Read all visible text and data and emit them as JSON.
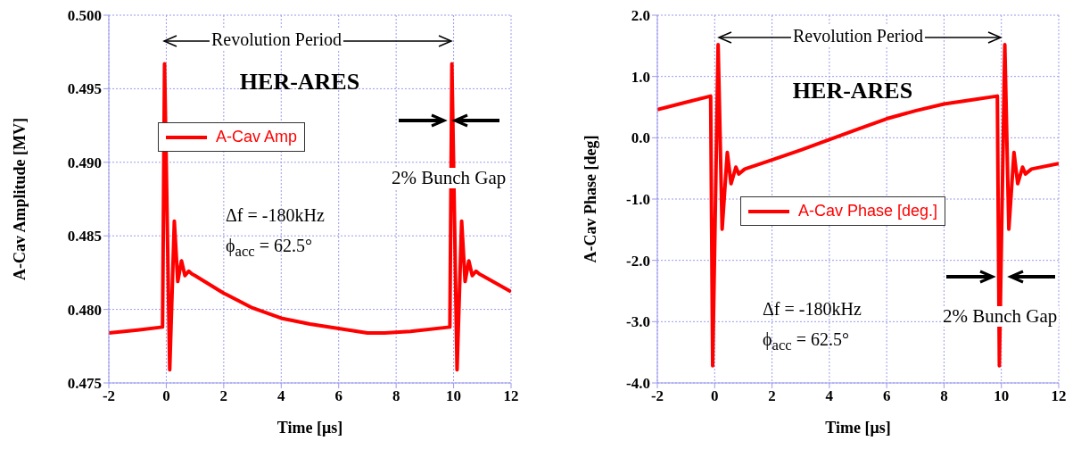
{
  "chart_data": [
    {
      "type": "line",
      "xlabel": "Time [μs]",
      "ylabel": "A-Cav Amplitude [MV]",
      "xlim": [
        -2,
        12
      ],
      "xticks": [
        -2,
        0,
        2,
        4,
        6,
        8,
        10,
        12
      ],
      "ylim": [
        0.475,
        0.5
      ],
      "yticks": [
        {
          "value": 0.475,
          "label": "0.475"
        },
        {
          "value": 0.48,
          "label": "0.480"
        },
        {
          "value": 0.485,
          "label": "0.485"
        },
        {
          "value": 0.49,
          "label": "0.490"
        },
        {
          "value": 0.495,
          "label": "0.495"
        },
        {
          "value": 0.5,
          "label": "0.500"
        }
      ],
      "grid": true,
      "legend": "top left",
      "line_style": "solid",
      "marker": "none",
      "x": [
        -2,
        -1,
        -0.13,
        -0.06,
        0.12,
        0.28,
        0.4,
        0.53,
        0.65,
        0.78,
        0.9,
        1,
        2,
        3,
        4,
        5,
        6,
        7,
        7.6,
        8.5,
        9.87,
        9.94,
        10.12,
        10.28,
        10.4,
        10.53,
        10.65,
        10.78,
        10.9,
        11,
        12
      ],
      "series": [
        {
          "name": "A-Cav Amp",
          "color": "#ff0000",
          "values": [
            0.4784,
            0.4786,
            0.4788,
            0.4967,
            0.4759,
            0.486,
            0.4819,
            0.4833,
            0.4823,
            0.4826,
            0.4824,
            0.4823,
            0.4811,
            0.4801,
            0.4794,
            0.479,
            0.4787,
            0.4784,
            0.4784,
            0.4785,
            0.4788,
            0.4967,
            0.4759,
            0.486,
            0.4819,
            0.4833,
            0.4823,
            0.4826,
            0.4824,
            0.4823,
            0.4812
          ]
        }
      ],
      "annotations": [
        "Revolution Period",
        "HER-ARES",
        "2% Bunch Gap",
        "Δf = -180kHz",
        "ϕ$_{acc}$ = 62.5°"
      ]
    },
    {
      "type": "line",
      "xlabel": "Time [μs]",
      "ylabel": "A-Cav Phase [deg]",
      "xlim": [
        -2,
        12
      ],
      "xticks": [
        -2,
        0,
        2,
        4,
        6,
        8,
        10,
        12
      ],
      "ylim": [
        -4,
        2
      ],
      "yticks": [
        {
          "value": -4,
          "label": "-4.0"
        },
        {
          "value": -3,
          "label": "-3.0"
        },
        {
          "value": -2,
          "label": "-2.0"
        },
        {
          "value": -1,
          "label": "-1.0"
        },
        {
          "value": 0,
          "label": "0.0"
        },
        {
          "value": 1,
          "label": "1.0"
        },
        {
          "value": 2,
          "label": "2.0"
        }
      ],
      "grid": true,
      "legend": "center left",
      "line_style": "solid",
      "marker": "none",
      "x": [
        -2,
        -0.14,
        -0.07,
        0.12,
        0.26,
        0.44,
        0.57,
        0.74,
        0.84,
        1.05,
        2,
        3,
        4,
        5,
        6,
        7,
        8,
        9,
        9.86,
        9.93,
        10.12,
        10.26,
        10.44,
        10.57,
        10.74,
        10.84,
        11.05,
        12
      ],
      "series": [
        {
          "name": "A-Cav Phase [deg.]",
          "color": "#ff0000",
          "values": [
            0.46,
            0.68,
            -3.72,
            1.52,
            -1.49,
            -0.24,
            -0.75,
            -0.48,
            -0.59,
            -0.51,
            -0.36,
            -0.2,
            -0.03,
            0.14,
            0.31,
            0.44,
            0.55,
            0.62,
            0.68,
            -3.72,
            1.52,
            -1.49,
            -0.24,
            -0.75,
            -0.48,
            -0.59,
            -0.51,
            -0.42
          ]
        }
      ],
      "annotations": [
        "Revolution Period",
        "HER-ARES",
        "2% Bunch Gap",
        "Δf = -180kHz",
        "ϕ$_{acc}$ = 62.5°"
      ]
    }
  ]
}
